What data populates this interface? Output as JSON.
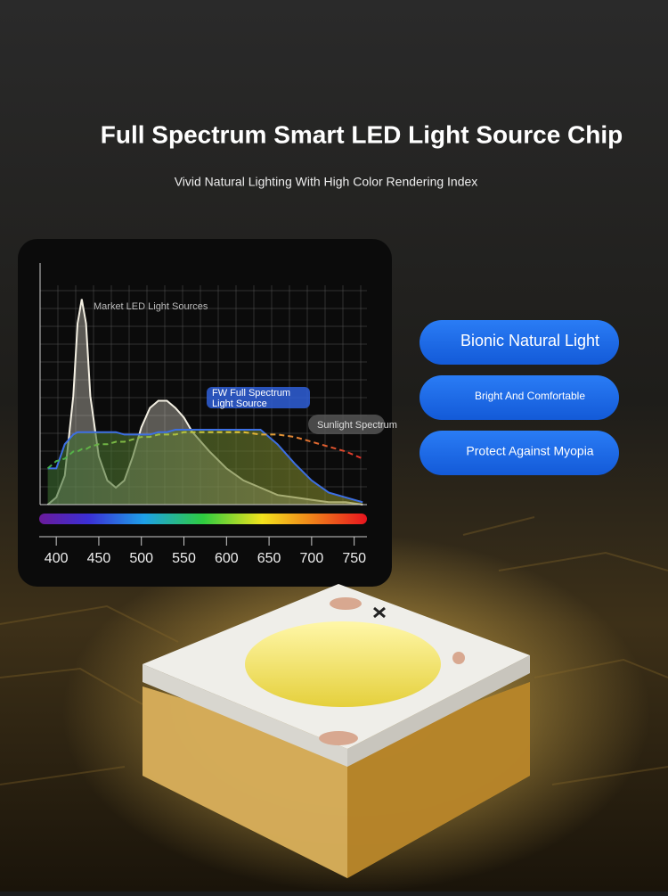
{
  "header": {
    "title": "Full Spectrum Smart LED Light Source Chip",
    "subtitle": "Vivid Natural Lighting With High Color Rendering Index"
  },
  "features": [
    "Bionic Natural Light",
    "Bright And Comfortable",
    "Protect Against Myopia"
  ],
  "chart_data": {
    "type": "line",
    "x": [
      390,
      400,
      410,
      420,
      425,
      430,
      435,
      440,
      450,
      460,
      470,
      480,
      490,
      500,
      510,
      520,
      530,
      540,
      550,
      560,
      580,
      600,
      620,
      640,
      660,
      680,
      700,
      720,
      740,
      760
    ],
    "series": [
      {
        "name": "Market LED Light Sources",
        "color": "#f3efe2",
        "values": [
          0,
          3,
          12,
          45,
          75,
          85,
          75,
          45,
          20,
          10,
          7,
          10,
          20,
          32,
          40,
          43,
          43,
          40,
          36,
          30,
          22,
          15,
          10,
          7,
          4,
          3,
          2,
          1,
          1,
          0
        ]
      },
      {
        "name": "FW Full Spectrum Light Source",
        "color": "#3d6fe3",
        "values": [
          15,
          15,
          25,
          29,
          30,
          30,
          30,
          30,
          30,
          30,
          30,
          29,
          29,
          29,
          29,
          30,
          30,
          31,
          31,
          31,
          31,
          31,
          31,
          31,
          25,
          17,
          10,
          5,
          3,
          1
        ]
      },
      {
        "name": "Sunlight Spectrum",
        "color": "#d9c33c",
        "values": [
          15,
          18,
          19,
          22,
          22,
          23,
          23,
          24,
          25,
          25,
          26,
          26,
          27,
          28,
          28,
          29,
          29,
          29,
          30,
          30,
          30,
          30,
          30,
          29,
          29,
          28,
          26,
          24,
          22,
          19
        ]
      }
    ],
    "xlim": [
      381,
      765
    ],
    "ylim": [
      0,
      100
    ],
    "xticks": [
      400,
      450,
      500,
      550,
      600,
      650,
      700,
      750
    ]
  }
}
